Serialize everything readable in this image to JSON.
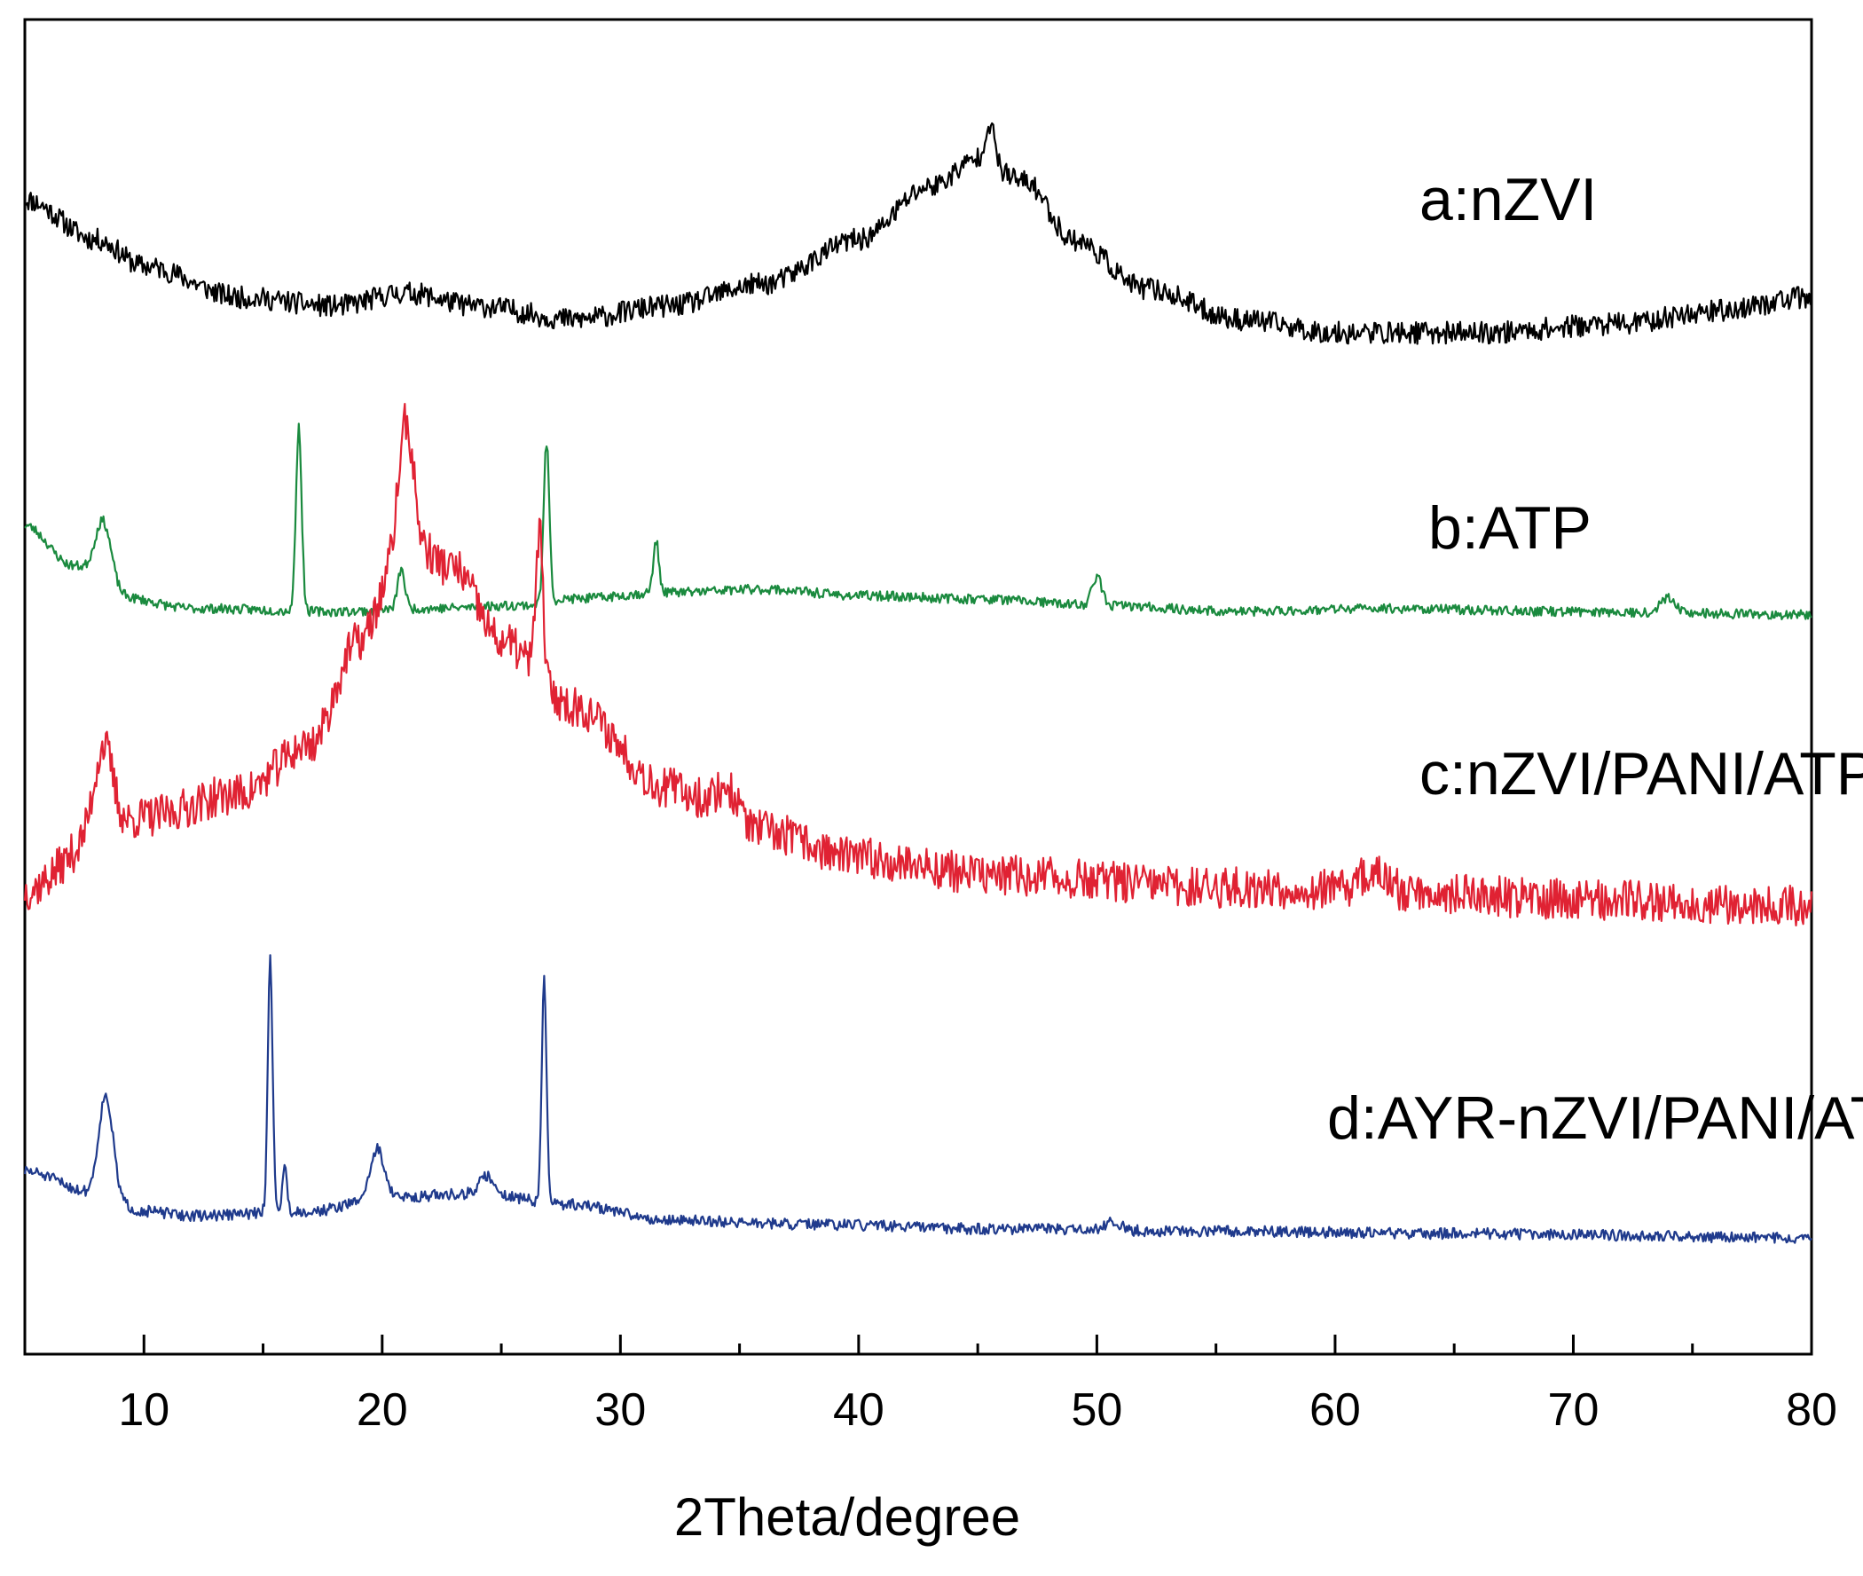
{
  "chart_data": {
    "type": "line",
    "title": "",
    "xlabel": "2Theta/degree",
    "ylabel": "",
    "xlim": [
      5,
      80
    ],
    "x_ticks": [
      10,
      20,
      30,
      40,
      50,
      60,
      70,
      80
    ],
    "x_minor_step": 5,
    "y_ticks_visible": false,
    "grid": false,
    "legend": "inline labels to the right of each trace",
    "y_units": "relative intensity (a.u.), offset stacked",
    "series": [
      {
        "name": "a:nZVI",
        "color": "#000000",
        "noise": 0.05,
        "seed": 11,
        "base": [
          [
            5,
            0.8
          ],
          [
            8,
            0.62
          ],
          [
            10,
            0.5
          ],
          [
            14,
            0.36
          ],
          [
            18,
            0.32
          ],
          [
            21,
            0.38
          ],
          [
            24,
            0.32
          ],
          [
            28,
            0.26
          ],
          [
            32,
            0.32
          ],
          [
            36,
            0.42
          ],
          [
            40,
            0.62
          ],
          [
            43,
            0.86
          ],
          [
            45,
            0.98
          ],
          [
            47,
            0.88
          ],
          [
            49,
            0.62
          ],
          [
            52,
            0.4
          ],
          [
            56,
            0.26
          ],
          [
            60,
            0.2
          ],
          [
            66,
            0.2
          ],
          [
            72,
            0.24
          ],
          [
            76,
            0.3
          ],
          [
            80,
            0.36
          ]
        ],
        "peaks": [
          [
            45.5,
            0.18,
            0.2
          ]
        ]
      },
      {
        "name": "b:ATP",
        "color": "#1a8a3e",
        "noise": 0.03,
        "seed": 23,
        "base": [
          [
            5,
            0.6
          ],
          [
            7,
            0.35
          ],
          [
            9,
            0.15
          ],
          [
            12,
            0.08
          ],
          [
            18,
            0.06
          ],
          [
            22,
            0.08
          ],
          [
            26,
            0.1
          ],
          [
            28,
            0.14
          ],
          [
            32,
            0.18
          ],
          [
            36,
            0.2
          ],
          [
            40,
            0.16
          ],
          [
            45,
            0.14
          ],
          [
            50,
            0.1
          ],
          [
            56,
            0.06
          ],
          [
            62,
            0.08
          ],
          [
            70,
            0.06
          ],
          [
            80,
            0.04
          ]
        ],
        "peaks": [
          [
            8.3,
            0.42,
            0.35
          ],
          [
            16.5,
            1.15,
            0.12
          ],
          [
            20.8,
            0.25,
            0.15
          ],
          [
            26.9,
            1.0,
            0.12
          ],
          [
            31.5,
            0.32,
            0.12
          ],
          [
            50.0,
            0.18,
            0.2
          ],
          [
            74.0,
            0.1,
            0.3
          ]
        ]
      },
      {
        "name": "c:nZVI/PANI/ATP",
        "color": "#e02233",
        "noise": 0.07,
        "seed": 37,
        "base": [
          [
            5,
            0.05
          ],
          [
            8,
            0.22
          ],
          [
            10,
            0.3
          ],
          [
            14,
            0.38
          ],
          [
            17,
            0.55
          ],
          [
            19,
            0.9
          ],
          [
            21,
            1.25
          ],
          [
            23,
            1.15
          ],
          [
            25,
            0.9
          ],
          [
            28,
            0.68
          ],
          [
            32,
            0.4
          ],
          [
            36,
            0.25
          ],
          [
            40,
            0.16
          ],
          [
            46,
            0.1
          ],
          [
            55,
            0.06
          ],
          [
            62,
            0.05
          ],
          [
            70,
            0.02
          ],
          [
            80,
            0.0
          ]
        ],
        "peaks": [
          [
            8.3,
            0.32,
            0.4
          ],
          [
            21.0,
            0.4,
            0.3
          ],
          [
            26.6,
            0.5,
            0.15
          ],
          [
            34.5,
            0.1,
            0.5
          ],
          [
            61.5,
            0.06,
            0.5
          ]
        ]
      },
      {
        "name": "d:AYR-nZVI/PANI/ATP",
        "color": "#1f3a8c",
        "noise": 0.025,
        "seed": 51,
        "base": [
          [
            5,
            0.3
          ],
          [
            8,
            0.2
          ],
          [
            10,
            0.12
          ],
          [
            12,
            0.1
          ],
          [
            17,
            0.12
          ],
          [
            20,
            0.18
          ],
          [
            24,
            0.2
          ],
          [
            28,
            0.15
          ],
          [
            32,
            0.08
          ],
          [
            38,
            0.06
          ],
          [
            46,
            0.04
          ],
          [
            55,
            0.03
          ],
          [
            65,
            0.02
          ],
          [
            80,
            0.0
          ]
        ],
        "peaks": [
          [
            8.4,
            0.45,
            0.3
          ],
          [
            15.3,
            1.15,
            0.1
          ],
          [
            15.9,
            0.2,
            0.1
          ],
          [
            19.8,
            0.22,
            0.3
          ],
          [
            24.4,
            0.08,
            0.3
          ],
          [
            26.8,
            1.0,
            0.1
          ],
          [
            50.7,
            0.04,
            0.3
          ]
        ]
      }
    ]
  }
}
